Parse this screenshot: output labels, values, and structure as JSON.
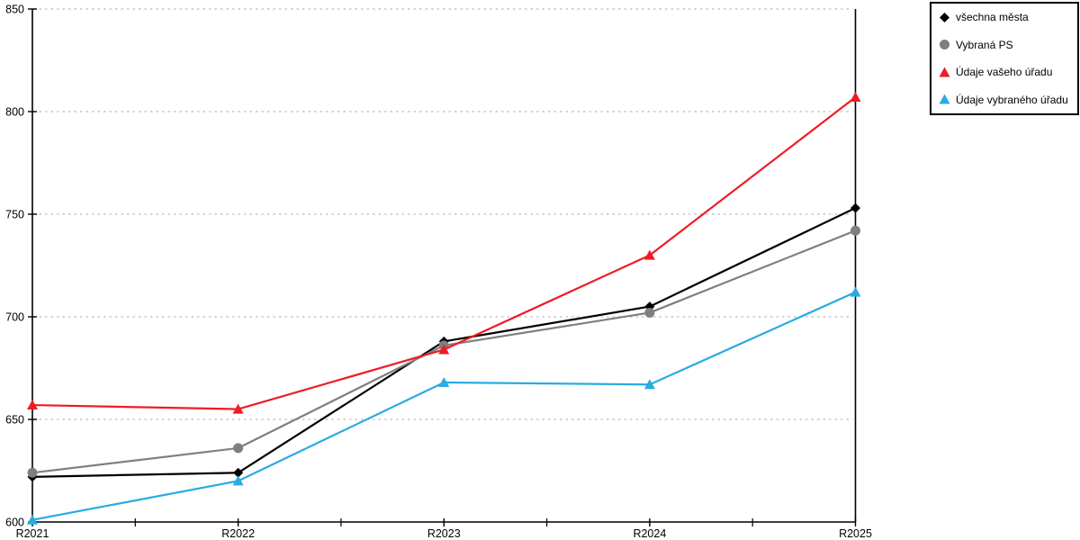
{
  "chart_data": {
    "type": "line",
    "title": "",
    "xlabel": "",
    "ylabel": "",
    "categories": [
      "R2021",
      "R2022",
      "R2023",
      "R2024",
      "R2025"
    ],
    "series": [
      {
        "name": "všechna města",
        "marker": "diamond",
        "color": "#000000",
        "values": [
          622,
          624,
          688,
          705,
          753
        ]
      },
      {
        "name": "Vybraná PS",
        "marker": "circle",
        "color": "#7f7f7f",
        "values": [
          624,
          636,
          686,
          702,
          742
        ]
      },
      {
        "name": "Údaje vašeho úřadu",
        "marker": "triangle",
        "color": "#ee1c25",
        "values": [
          657,
          655,
          684,
          730,
          807
        ]
      },
      {
        "name": "Údaje vybraného úřadu",
        "marker": "triangle",
        "color": "#29abe2",
        "values": [
          601,
          620,
          668,
          667,
          712
        ]
      }
    ],
    "ylim": [
      600,
      850
    ],
    "yticks": [
      600,
      650,
      700,
      750,
      800,
      850
    ],
    "grid": "horizontal-dotted",
    "legend_position": "top-right",
    "colors": {
      "axis": "#000000",
      "gridline": "#c6c6c6",
      "tick_label": "#000000",
      "legend_border": "#000000",
      "background": "#ffffff"
    }
  }
}
